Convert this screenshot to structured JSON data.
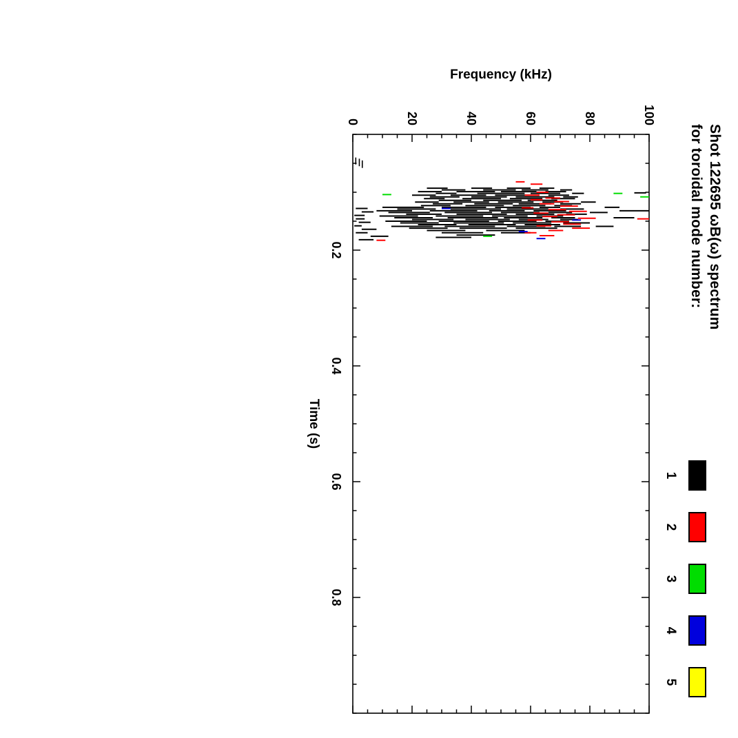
{
  "title": {
    "line1": "Shot 122695 ωB(ω) spectrum",
    "line2": "for toroidal mode number:"
  },
  "chart_data": {
    "type": "scatter",
    "title": "Shot 122695 ωB(ω) spectrum for toroidal mode number:",
    "xlabel": "Time (s)",
    "ylabel": "Frequency (kHz)",
    "xlim": [
      0,
      1.0
    ],
    "ylim": [
      0,
      100
    ],
    "x_tick_labels": [
      "0.2",
      "0.4",
      "0.6",
      "0.8"
    ],
    "x_major_ticks": [
      0.2,
      0.4,
      0.6,
      0.8
    ],
    "x_minor_step": 0.05,
    "y_tick_labels": [
      "0",
      "20",
      "40",
      "60",
      "80",
      "100"
    ],
    "y_major_ticks": [
      0,
      20,
      40,
      60,
      80,
      100
    ],
    "y_minor_step": 5,
    "grid": false,
    "legend_position": "top-right",
    "orientation": "landscape plot rotated 90deg clockwise",
    "frame_color": "#000000",
    "series": [
      {
        "label": "1",
        "color": "#000000",
        "freq_segments": [
          [
            0.093,
            25,
            32
          ],
          [
            0.093,
            40,
            47
          ],
          [
            0.093,
            52,
            60
          ],
          [
            0.093,
            63,
            68
          ],
          [
            0.096,
            30,
            38
          ],
          [
            0.096,
            44,
            55
          ],
          [
            0.096,
            57,
            66
          ],
          [
            0.096,
            70,
            74
          ],
          [
            0.099,
            22,
            30
          ],
          [
            0.099,
            35,
            48
          ],
          [
            0.099,
            50,
            62
          ],
          [
            0.099,
            65,
            72
          ],
          [
            0.101,
            95,
            99
          ],
          [
            0.102,
            28,
            35
          ],
          [
            0.102,
            42,
            58
          ],
          [
            0.102,
            60,
            70
          ],
          [
            0.102,
            74,
            78
          ],
          [
            0.105,
            20,
            28
          ],
          [
            0.105,
            33,
            45
          ],
          [
            0.105,
            48,
            63
          ],
          [
            0.105,
            66,
            73
          ],
          [
            0.108,
            26,
            36
          ],
          [
            0.108,
            40,
            52
          ],
          [
            0.108,
            55,
            68
          ],
          [
            0.108,
            71,
            76
          ],
          [
            0.111,
            24,
            31
          ],
          [
            0.111,
            37,
            50
          ],
          [
            0.111,
            53,
            64
          ],
          [
            0.111,
            67,
            75
          ],
          [
            0.114,
            29,
            40
          ],
          [
            0.114,
            44,
            57
          ],
          [
            0.114,
            59,
            69
          ],
          [
            0.117,
            21,
            29
          ],
          [
            0.117,
            34,
            46
          ],
          [
            0.117,
            49,
            61
          ],
          [
            0.117,
            64,
            71
          ],
          [
            0.117,
            77,
            82
          ],
          [
            0.12,
            27,
            37
          ],
          [
            0.12,
            41,
            54
          ],
          [
            0.12,
            56,
            67
          ],
          [
            0.12,
            70,
            77
          ],
          [
            0.123,
            23,
            33
          ],
          [
            0.123,
            38,
            51
          ],
          [
            0.123,
            54,
            65
          ],
          [
            0.123,
            68,
            74
          ],
          [
            0.126,
            10,
            24
          ],
          [
            0.126,
            30,
            45
          ],
          [
            0.126,
            48,
            60
          ],
          [
            0.126,
            63,
            70
          ],
          [
            0.126,
            85,
            90
          ],
          [
            0.128,
            1,
            5
          ],
          [
            0.129,
            15,
            28
          ],
          [
            0.129,
            33,
            50
          ],
          [
            0.129,
            52,
            66
          ],
          [
            0.129,
            70,
            78
          ],
          [
            0.132,
            8,
            20
          ],
          [
            0.132,
            26,
            42
          ],
          [
            0.132,
            46,
            58
          ],
          [
            0.132,
            61,
            72
          ],
          [
            0.132,
            90,
            100
          ],
          [
            0.134,
            3,
            7
          ],
          [
            0.135,
            12,
            26
          ],
          [
            0.135,
            31,
            47
          ],
          [
            0.135,
            50,
            63
          ],
          [
            0.135,
            66,
            74
          ],
          [
            0.135,
            80,
            86
          ],
          [
            0.138,
            18,
            30
          ],
          [
            0.138,
            35,
            52
          ],
          [
            0.138,
            55,
            68
          ],
          [
            0.138,
            72,
            79
          ],
          [
            0.14,
            0.5,
            4
          ],
          [
            0.141,
            9,
            22
          ],
          [
            0.141,
            28,
            44
          ],
          [
            0.141,
            47,
            59
          ],
          [
            0.141,
            62,
            71
          ],
          [
            0.144,
            14,
            27
          ],
          [
            0.144,
            32,
            49
          ],
          [
            0.144,
            51,
            64
          ],
          [
            0.144,
            67,
            75
          ],
          [
            0.144,
            88,
            95
          ],
          [
            0.147,
            20,
            34
          ],
          [
            0.147,
            38,
            53
          ],
          [
            0.147,
            56,
            66
          ],
          [
            0.147,
            70,
            76
          ],
          [
            0.15,
            11,
            25
          ],
          [
            0.15,
            29,
            46
          ],
          [
            0.15,
            49,
            62
          ],
          [
            0.15,
            65,
            73
          ],
          [
            0.153,
            16,
            29
          ],
          [
            0.153,
            34,
            51
          ],
          [
            0.153,
            54,
            67
          ],
          [
            0.153,
            71,
            80
          ],
          [
            0.156,
            22,
            35
          ],
          [
            0.156,
            39,
            55
          ],
          [
            0.156,
            58,
            70
          ],
          [
            0.159,
            13,
            27
          ],
          [
            0.159,
            31,
            48
          ],
          [
            0.159,
            52,
            65
          ],
          [
            0.159,
            68,
            77
          ],
          [
            0.159,
            82,
            88
          ],
          [
            0.162,
            19,
            32
          ],
          [
            0.162,
            36,
            52
          ],
          [
            0.162,
            55,
            69
          ],
          [
            0.166,
            25,
            38
          ],
          [
            0.166,
            45,
            58
          ],
          [
            0.17,
            30,
            44
          ],
          [
            0.17,
            50,
            60
          ],
          [
            0.174,
            35,
            48
          ],
          [
            0.178,
            28,
            40
          ],
          [
            0.146,
            1,
            4
          ],
          [
            0.152,
            2,
            6
          ],
          [
            0.158,
            0.5,
            3
          ],
          [
            0.164,
            3,
            8
          ],
          [
            0.17,
            1,
            5
          ],
          [
            0.176,
            6,
            12
          ],
          [
            0.182,
            2,
            7
          ]
        ],
        "time_segments": [
          [
            0.04,
            0.052,
            1.0
          ],
          [
            0.042,
            0.055,
            2.2
          ],
          [
            0.045,
            0.058,
            3.2
          ]
        ]
      },
      {
        "label": "2",
        "color": "#ff0000",
        "freq_segments": [
          [
            0.082,
            55,
            58
          ],
          [
            0.086,
            60,
            64
          ],
          [
            0.1,
            62,
            66
          ],
          [
            0.105,
            58,
            63
          ],
          [
            0.11,
            65,
            70
          ],
          [
            0.113,
            60,
            64
          ],
          [
            0.116,
            68,
            73
          ],
          [
            0.12,
            63,
            68
          ],
          [
            0.124,
            70,
            76
          ],
          [
            0.127,
            57,
            61
          ],
          [
            0.13,
            66,
            72
          ],
          [
            0.133,
            73,
            79
          ],
          [
            0.136,
            61,
            66
          ],
          [
            0.139,
            69,
            75
          ],
          [
            0.142,
            64,
            69
          ],
          [
            0.145,
            76,
            82
          ],
          [
            0.146,
            96,
            100
          ],
          [
            0.148,
            59,
            64
          ],
          [
            0.151,
            67,
            73
          ],
          [
            0.155,
            71,
            77
          ],
          [
            0.158,
            62,
            67
          ],
          [
            0.162,
            74,
            80
          ],
          [
            0.166,
            66,
            71
          ],
          [
            0.17,
            58,
            62
          ],
          [
            0.175,
            63,
            68
          ],
          [
            0.183,
            8,
            11
          ]
        ],
        "time_segments": []
      },
      {
        "label": "3",
        "color": "#00dd00",
        "freq_segments": [
          [
            0.102,
            88,
            91
          ],
          [
            0.104,
            10,
            13
          ],
          [
            0.108,
            97,
            100
          ],
          [
            0.176,
            44,
            47
          ]
        ],
        "time_segments": []
      },
      {
        "label": "4",
        "color": "#0000dd",
        "freq_segments": [
          [
            0.128,
            30,
            33
          ],
          [
            0.148,
            74,
            77
          ],
          [
            0.168,
            56,
            59
          ],
          [
            0.18,
            62,
            65
          ]
        ],
        "time_segments": []
      },
      {
        "label": "5",
        "color": "#ffff00",
        "freq_segments": [],
        "time_segments": []
      }
    ]
  }
}
